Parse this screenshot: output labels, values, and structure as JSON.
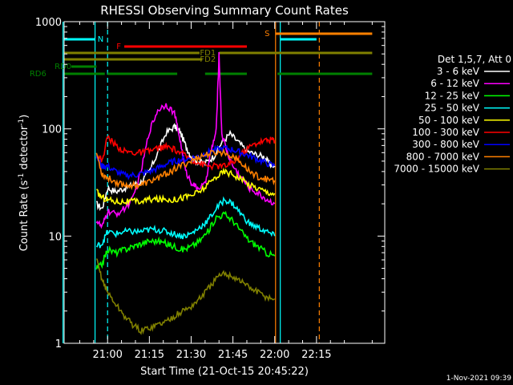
{
  "chart_data": {
    "type": "line",
    "title": "RHESSI Observing Summary Count Rates",
    "xlabel": "Start Time (21-Oct-15 20:45:22)",
    "ylabel_main": "Count Rate (s",
    "ylabel_sup1": "-1",
    "ylabel_mid": " detector",
    "ylabel_sup2": "-1",
    "ylabel_end": ")",
    "yscale": "log",
    "ylim": [
      1,
      1000
    ],
    "xlim_minutes": [
      -15.6,
      99.5
    ],
    "x_ticks": [
      {
        "label": "21:00",
        "t": 0
      },
      {
        "label": "21:15",
        "t": 15
      },
      {
        "label": "21:30",
        "t": 30
      },
      {
        "label": "21:45",
        "t": 45
      },
      {
        "label": "22:00",
        "t": 60
      },
      {
        "label": "22:15",
        "t": 75
      }
    ],
    "y_ticks": [
      {
        "label": "1",
        "v": 1
      },
      {
        "label": "10",
        "v": 10
      },
      {
        "label": "100",
        "v": 100
      },
      {
        "label": "1000",
        "v": 1000
      }
    ],
    "legend_header": "Det 1,5,7, Att 0",
    "legend_placement": "right",
    "series": [
      {
        "name": "3 - 6 keV",
        "color": "#ffffff",
        "points": [
          [
            -4,
            20
          ],
          [
            -2,
            18
          ],
          [
            0,
            28
          ],
          [
            3,
            26
          ],
          [
            6,
            28
          ],
          [
            9,
            30
          ],
          [
            12,
            32
          ],
          [
            15,
            40
          ],
          [
            18,
            60
          ],
          [
            21,
            92
          ],
          [
            24,
            105
          ],
          [
            26,
            95
          ],
          [
            28,
            70
          ],
          [
            30,
            55
          ],
          [
            32,
            50
          ],
          [
            35,
            48
          ],
          [
            38,
            55
          ],
          [
            41,
            75
          ],
          [
            44,
            90
          ],
          [
            47,
            75
          ],
          [
            50,
            62
          ],
          [
            53,
            58
          ],
          [
            56,
            55
          ],
          [
            58,
            48
          ],
          [
            60,
            44
          ]
        ]
      },
      {
        "name": "6 - 12 keV",
        "color": "#ff00ff",
        "points": [
          [
            -4,
            14
          ],
          [
            -2,
            12
          ],
          [
            0,
            17
          ],
          [
            3,
            16
          ],
          [
            6,
            18
          ],
          [
            9,
            22
          ],
          [
            12,
            40
          ],
          [
            15,
            95
          ],
          [
            18,
            150
          ],
          [
            21,
            170
          ],
          [
            24,
            140
          ],
          [
            26,
            80
          ],
          [
            28,
            40
          ],
          [
            30,
            32
          ],
          [
            32,
            28
          ],
          [
            35,
            30
          ],
          [
            37,
            60
          ],
          [
            39,
            95
          ],
          [
            40,
            500
          ],
          [
            41,
            90
          ],
          [
            43,
            60
          ],
          [
            45,
            45
          ],
          [
            48,
            35
          ],
          [
            51,
            28
          ],
          [
            54,
            25
          ],
          [
            57,
            22
          ],
          [
            60,
            20
          ]
        ]
      },
      {
        "name": "12 - 25 keV",
        "color": "#00ff00",
        "points": [
          [
            -4,
            5
          ],
          [
            -2,
            5.5
          ],
          [
            0,
            7.5
          ],
          [
            3,
            7
          ],
          [
            6,
            7.5
          ],
          [
            9,
            8
          ],
          [
            12,
            8.5
          ],
          [
            15,
            9
          ],
          [
            18,
            9
          ],
          [
            21,
            8.5
          ],
          [
            24,
            8
          ],
          [
            27,
            7.5
          ],
          [
            30,
            8
          ],
          [
            33,
            9
          ],
          [
            36,
            11
          ],
          [
            39,
            15
          ],
          [
            42,
            16
          ],
          [
            45,
            14
          ],
          [
            48,
            11
          ],
          [
            51,
            9
          ],
          [
            54,
            8
          ],
          [
            57,
            7
          ],
          [
            60,
            6.5
          ]
        ]
      },
      {
        "name": "25 - 50 keV",
        "color": "#00ffff",
        "points": [
          [
            -4,
            8
          ],
          [
            -2,
            8.5
          ],
          [
            0,
            11
          ],
          [
            3,
            10.5
          ],
          [
            6,
            11
          ],
          [
            9,
            11
          ],
          [
            12,
            11
          ],
          [
            15,
            11.5
          ],
          [
            18,
            11.5
          ],
          [
            21,
            11
          ],
          [
            24,
            10.5
          ],
          [
            27,
            10
          ],
          [
            30,
            10.5
          ],
          [
            33,
            12
          ],
          [
            36,
            14
          ],
          [
            39,
            18
          ],
          [
            42,
            22
          ],
          [
            45,
            20
          ],
          [
            48,
            16
          ],
          [
            51,
            13
          ],
          [
            54,
            12
          ],
          [
            57,
            11
          ],
          [
            60,
            10
          ]
        ]
      },
      {
        "name": "50 - 100 keV",
        "color": "#ffff00",
        "points": [
          [
            -4,
            26
          ],
          [
            -2,
            23
          ],
          [
            0,
            22
          ],
          [
            3,
            21
          ],
          [
            6,
            21
          ],
          [
            9,
            21
          ],
          [
            12,
            21
          ],
          [
            15,
            22
          ],
          [
            18,
            22
          ],
          [
            21,
            22
          ],
          [
            24,
            22
          ],
          [
            27,
            23
          ],
          [
            30,
            24
          ],
          [
            33,
            26
          ],
          [
            36,
            30
          ],
          [
            39,
            36
          ],
          [
            42,
            40
          ],
          [
            45,
            38
          ],
          [
            48,
            34
          ],
          [
            51,
            30
          ],
          [
            54,
            28
          ],
          [
            57,
            26
          ],
          [
            60,
            25
          ]
        ]
      },
      {
        "name": "100 - 300 keV",
        "color": "#ff0000",
        "points": [
          [
            -4,
            58
          ],
          [
            -2,
            50
          ],
          [
            0,
            85
          ],
          [
            3,
            70
          ],
          [
            6,
            62
          ],
          [
            9,
            60
          ],
          [
            12,
            60
          ],
          [
            15,
            62
          ],
          [
            18,
            66
          ],
          [
            21,
            68
          ],
          [
            24,
            64
          ],
          [
            27,
            58
          ],
          [
            30,
            52
          ],
          [
            33,
            48
          ],
          [
            36,
            45
          ],
          [
            39,
            45
          ],
          [
            42,
            45
          ],
          [
            45,
            48
          ],
          [
            48,
            58
          ],
          [
            51,
            68
          ],
          [
            54,
            75
          ],
          [
            57,
            78
          ],
          [
            59,
            80
          ],
          [
            60,
            78
          ]
        ]
      },
      {
        "name": "300 - 800 keV",
        "color": "#0000ff",
        "points": [
          [
            -4,
            55
          ],
          [
            -2,
            45
          ],
          [
            0,
            45
          ],
          [
            3,
            40
          ],
          [
            6,
            37
          ],
          [
            9,
            37
          ],
          [
            12,
            38
          ],
          [
            15,
            40
          ],
          [
            18,
            43
          ],
          [
            21,
            47
          ],
          [
            24,
            50
          ],
          [
            27,
            52
          ],
          [
            30,
            53
          ],
          [
            33,
            56
          ],
          [
            36,
            60
          ],
          [
            39,
            64
          ],
          [
            42,
            66
          ],
          [
            45,
            64
          ],
          [
            48,
            60
          ],
          [
            51,
            56
          ],
          [
            54,
            52
          ],
          [
            57,
            48
          ],
          [
            60,
            45
          ]
        ]
      },
      {
        "name": "800 - 7000 keV",
        "color": "#ff8000",
        "points": [
          [
            -4,
            60
          ],
          [
            -2,
            38
          ],
          [
            0,
            35
          ],
          [
            3,
            32
          ],
          [
            6,
            30
          ],
          [
            9,
            30
          ],
          [
            12,
            30
          ],
          [
            15,
            32
          ],
          [
            18,
            35
          ],
          [
            21,
            38
          ],
          [
            24,
            42
          ],
          [
            27,
            46
          ],
          [
            30,
            50
          ],
          [
            33,
            55
          ],
          [
            36,
            58
          ],
          [
            39,
            60
          ],
          [
            42,
            60
          ],
          [
            45,
            56
          ],
          [
            48,
            48
          ],
          [
            51,
            40
          ],
          [
            54,
            36
          ],
          [
            57,
            34
          ],
          [
            60,
            33
          ]
        ]
      },
      {
        "name": "7000 - 15000 keV",
        "color": "#808000",
        "points": [
          [
            -4,
            6
          ],
          [
            -2,
            4
          ],
          [
            0,
            3
          ],
          [
            3,
            2.3
          ],
          [
            6,
            1.8
          ],
          [
            9,
            1.5
          ],
          [
            12,
            1.3
          ],
          [
            15,
            1.4
          ],
          [
            18,
            1.5
          ],
          [
            21,
            1.6
          ],
          [
            24,
            1.8
          ],
          [
            27,
            2
          ],
          [
            30,
            2.2
          ],
          [
            33,
            2.6
          ],
          [
            36,
            3.2
          ],
          [
            39,
            4
          ],
          [
            42,
            4.5
          ],
          [
            45,
            4.2
          ],
          [
            48,
            3.8
          ],
          [
            51,
            3.3
          ],
          [
            54,
            3
          ],
          [
            57,
            2.7
          ],
          [
            60,
            2.6
          ]
        ]
      }
    ],
    "state_bars": [
      {
        "label": "N",
        "color": "#00ffff",
        "segments": [
          [
            -15.6,
            -4.5
          ],
          [
            62,
            75
          ]
        ],
        "label_t": -2.5,
        "level": 0
      },
      {
        "label": "S",
        "color": "#ff8000",
        "segments": [
          [
            60.3,
            95
          ]
        ],
        "label_t": 57.3,
        "level": 1
      },
      {
        "label": "F",
        "color": "#ff0000",
        "segments": [
          [
            6,
            50
          ]
        ],
        "label_t": 4,
        "level": 2
      },
      {
        "label": "FD1",
        "color": "#808000",
        "segments": [
          [
            -15.6,
            33
          ],
          [
            40,
            95
          ]
        ],
        "label_t": 36,
        "level": 3
      },
      {
        "label": "FD2",
        "color": "#808000",
        "segments": [
          [
            -15.6,
            34
          ]
        ],
        "label_t": 36,
        "level": 4
      },
      {
        "label": "RD0",
        "color": "#008000",
        "segments": [
          [
            -13,
            -4
          ]
        ],
        "label_t": -16,
        "level": 5
      },
      {
        "label": "RD6",
        "color": "#008000",
        "segments": [
          [
            -15.6,
            -1
          ],
          [
            0,
            25
          ],
          [
            35,
            50
          ],
          [
            61,
            95
          ]
        ],
        "label_t": -25,
        "level": 6
      }
    ],
    "vlines": [
      {
        "t": -16,
        "color": "#00ffff",
        "dashed": false
      },
      {
        "t": -4.5,
        "color": "#00ffff",
        "dashed": false
      },
      {
        "t": 0,
        "color": "#00ffff",
        "dashed": true
      },
      {
        "t": 60.3,
        "color": "#ff8000",
        "dashed": false
      },
      {
        "t": 62,
        "color": "#00ffff",
        "dashed": false
      },
      {
        "t": 76,
        "color": "#ff8000",
        "dashed": true
      }
    ]
  },
  "footer": {
    "date_stamp": "1-Nov-2021 09:39"
  }
}
